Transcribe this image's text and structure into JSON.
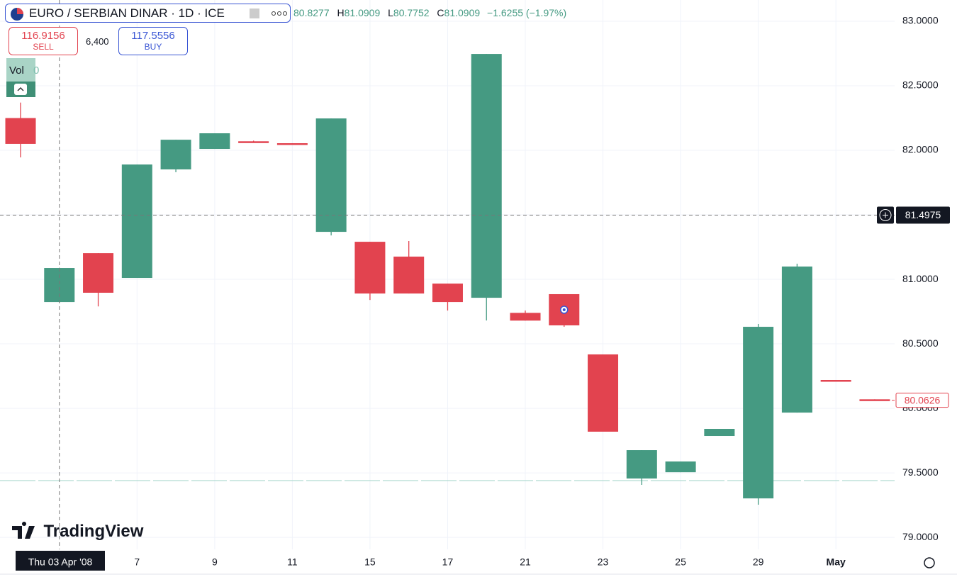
{
  "header": {
    "title": "EURO / SERBIAN DINAR · 1D · ICE",
    "open": 80.8277,
    "high_label": "H",
    "high": 81.0909,
    "low_label": "L",
    "low": 80.7752,
    "close_label": "C",
    "close": 81.0909,
    "change": "−1.6255 (−1.97%)"
  },
  "trade": {
    "sell_price": 116.9156,
    "sell_label": "SELL",
    "spread": "6,400",
    "buy_price": 117.5556,
    "buy_label": "BUY"
  },
  "volume": {
    "label": "Vol",
    "value": 0
  },
  "watermark": "TradingView",
  "chart_data": {
    "type": "candlestick",
    "categories": [
      null,
      null,
      null,
      "7",
      null,
      "9",
      null,
      "11",
      null,
      "15",
      null,
      "17",
      null,
      "21",
      null,
      "23",
      null,
      "25",
      null,
      "29",
      null,
      "May",
      null
    ],
    "open": [
      82.25,
      80.824,
      81.203,
      81.011,
      81.852,
      82.011,
      82.07,
      82.055,
      81.368,
      81.291,
      81.176,
      80.967,
      80.857,
      80.74,
      80.885,
      80.418,
      79.456,
      79.505,
      79.786,
      79.302,
      79.967,
      80.22,
      80.07
    ],
    "high": [
      82.37,
      81.09,
      81.203,
      81.89,
      82.082,
      82.132,
      82.075,
      82.055,
      82.247,
      81.291,
      81.297,
      80.967,
      82.747,
      80.758,
      80.885,
      80.418,
      79.676,
      79.588,
      79.841,
      80.654,
      81.121,
      80.22,
      80.07
    ],
    "low": [
      81.945,
      80.82,
      80.79,
      81.011,
      81.83,
      82.011,
      82.06,
      82.05,
      81.34,
      80.84,
      80.89,
      80.758,
      80.681,
      80.68,
      80.632,
      79.819,
      79.407,
      79.505,
      79.786,
      79.253,
      79.967,
      80.21,
      80.06
    ],
    "close": [
      82.05,
      81.088,
      80.896,
      81.89,
      82.082,
      82.132,
      82.06,
      82.05,
      82.247,
      80.89,
      80.89,
      80.824,
      82.747,
      80.68,
      80.643,
      79.819,
      79.676,
      79.588,
      79.841,
      80.632,
      81.099,
      80.21,
      80.06
    ],
    "colors": {
      "up": "#459a82",
      "down": "#e2434f"
    },
    "ylim": [
      78.907,
      83.165
    ],
    "yticks": [
      {
        "value": 79,
        "label": "79.0000"
      },
      {
        "value": 79.5,
        "label": "79.5000"
      },
      {
        "value": 80,
        "label": "80.0000"
      },
      {
        "value": 80.5,
        "label": "80.5000"
      },
      {
        "value": 81,
        "label": "81.0000"
      },
      {
        "value": 81.5,
        "label": "81.5000"
      },
      {
        "value": 82,
        "label": "82.0000"
      },
      {
        "value": 82.5,
        "label": "82.5000"
      },
      {
        "value": 83,
        "label": "83.0000"
      }
    ],
    "grid": true,
    "price_line": 79.44,
    "last_price": 80.0626,
    "crosshair": {
      "date_label": "Thu 03 Apr '08",
      "price": 81.4975
    }
  }
}
